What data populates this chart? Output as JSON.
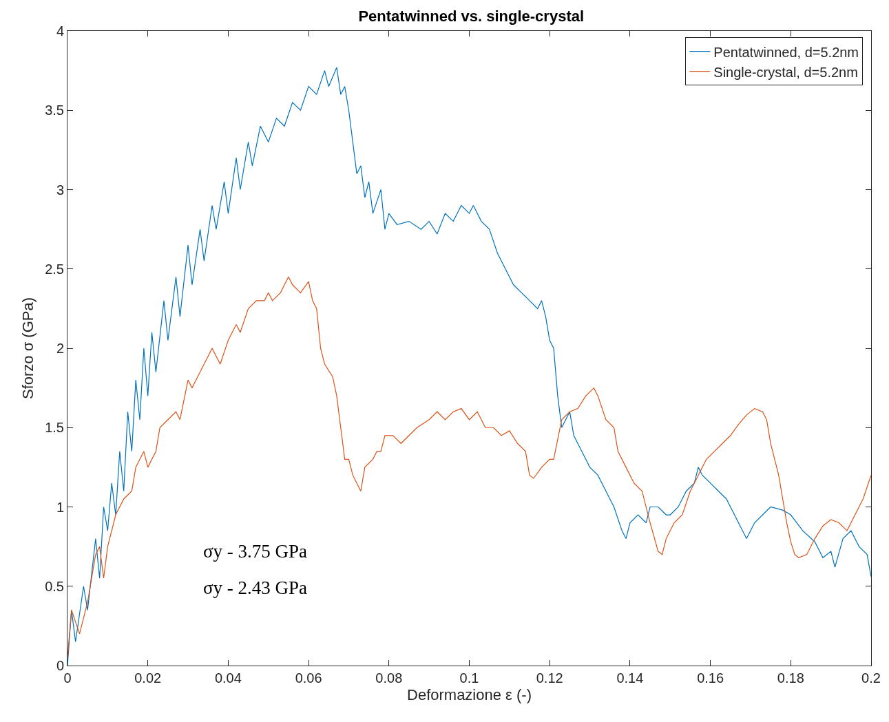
{
  "chart_data": {
    "type": "line",
    "title": "Pentatwinned vs. single-crystal",
    "xlabel": "Deformazione ε (-)",
    "ylabel": "Sforzo σ (GPa)",
    "xlim": [
      0,
      0.2
    ],
    "ylim": [
      0,
      4
    ],
    "xticks": [
      0,
      0.02,
      0.04,
      0.06,
      0.08,
      0.1,
      0.12,
      0.14,
      0.16,
      0.18,
      0.2
    ],
    "yticks": [
      0,
      0.5,
      1,
      1.5,
      2,
      2.5,
      3,
      3.5,
      4
    ],
    "legend": "top right",
    "marker": "none",
    "line_style": "solid",
    "annotations": [
      "σy - 3.75 GPa",
      "σy - 2.43 GPa"
    ],
    "series": [
      {
        "name": "Pentatwinned, d=5.2nm",
        "color": "#0072bd",
        "x": [
          0,
          0.001,
          0.002,
          0.004,
          0.005,
          0.007,
          0.008,
          0.009,
          0.01,
          0.011,
          0.012,
          0.013,
          0.014,
          0.015,
          0.016,
          0.017,
          0.018,
          0.019,
          0.02,
          0.021,
          0.022,
          0.024,
          0.025,
          0.027,
          0.028,
          0.03,
          0.031,
          0.033,
          0.034,
          0.036,
          0.037,
          0.039,
          0.04,
          0.042,
          0.043,
          0.045,
          0.046,
          0.048,
          0.05,
          0.052,
          0.054,
          0.056,
          0.058,
          0.06,
          0.062,
          0.064,
          0.065,
          0.067,
          0.068,
          0.069,
          0.07,
          0.071,
          0.072,
          0.073,
          0.074,
          0.075,
          0.076,
          0.078,
          0.079,
          0.08,
          0.082,
          0.085,
          0.088,
          0.09,
          0.092,
          0.094,
          0.096,
          0.098,
          0.1,
          0.101,
          0.103,
          0.105,
          0.107,
          0.109,
          0.111,
          0.113,
          0.115,
          0.117,
          0.118,
          0.119,
          0.12,
          0.121,
          0.122,
          0.123,
          0.124,
          0.125,
          0.126,
          0.128,
          0.13,
          0.132,
          0.134,
          0.136,
          0.138,
          0.139,
          0.14,
          0.142,
          0.144,
          0.145,
          0.147,
          0.149,
          0.15,
          0.152,
          0.154,
          0.156,
          0.157,
          0.158,
          0.16,
          0.162,
          0.164,
          0.166,
          0.168,
          0.169,
          0.171,
          0.173,
          0.175,
          0.178,
          0.18,
          0.183,
          0.186,
          0.188,
          0.19,
          0.191,
          0.193,
          0.195,
          0.197,
          0.199,
          0.2
        ],
        "values": [
          0,
          0.35,
          0.15,
          0.5,
          0.35,
          0.8,
          0.55,
          1.0,
          0.85,
          1.15,
          0.95,
          1.35,
          1.1,
          1.6,
          1.35,
          1.8,
          1.55,
          2.0,
          1.7,
          2.1,
          1.85,
          2.3,
          2.05,
          2.45,
          2.2,
          2.65,
          2.4,
          2.75,
          2.55,
          2.9,
          2.75,
          3.05,
          2.85,
          3.2,
          3.0,
          3.3,
          3.15,
          3.4,
          3.3,
          3.45,
          3.4,
          3.55,
          3.5,
          3.65,
          3.6,
          3.75,
          3.65,
          3.77,
          3.6,
          3.65,
          3.5,
          3.3,
          3.1,
          3.15,
          2.95,
          3.05,
          2.85,
          3.0,
          2.75,
          2.85,
          2.78,
          2.8,
          2.75,
          2.8,
          2.72,
          2.85,
          2.8,
          2.9,
          2.85,
          2.9,
          2.8,
          2.75,
          2.6,
          2.5,
          2.4,
          2.35,
          2.3,
          2.25,
          2.3,
          2.2,
          2.05,
          2.0,
          1.7,
          1.5,
          1.55,
          1.6,
          1.45,
          1.35,
          1.25,
          1.2,
          1.1,
          1.0,
          0.85,
          0.8,
          0.9,
          0.95,
          0.9,
          1.0,
          1.0,
          0.95,
          0.95,
          1.0,
          1.1,
          1.15,
          1.25,
          1.2,
          1.15,
          1.1,
          1.05,
          0.95,
          0.85,
          0.8,
          0.9,
          0.95,
          1.0,
          0.98,
          0.95,
          0.85,
          0.78,
          0.68,
          0.72,
          0.62,
          0.8,
          0.85,
          0.75,
          0.7,
          0.56
        ]
      },
      {
        "name": "Single-crystal, d=5.2nm",
        "color": "#d95319",
        "x": [
          0,
          0.001,
          0.003,
          0.005,
          0.006,
          0.007,
          0.008,
          0.009,
          0.01,
          0.012,
          0.014,
          0.016,
          0.017,
          0.019,
          0.02,
          0.022,
          0.023,
          0.025,
          0.027,
          0.028,
          0.03,
          0.031,
          0.033,
          0.035,
          0.036,
          0.038,
          0.04,
          0.042,
          0.043,
          0.045,
          0.047,
          0.049,
          0.05,
          0.051,
          0.053,
          0.055,
          0.056,
          0.058,
          0.06,
          0.061,
          0.062,
          0.063,
          0.064,
          0.066,
          0.067,
          0.068,
          0.069,
          0.07,
          0.071,
          0.072,
          0.073,
          0.074,
          0.076,
          0.077,
          0.078,
          0.079,
          0.081,
          0.083,
          0.085,
          0.087,
          0.09,
          0.092,
          0.094,
          0.096,
          0.098,
          0.1,
          0.102,
          0.104,
          0.106,
          0.108,
          0.11,
          0.112,
          0.114,
          0.115,
          0.116,
          0.118,
          0.12,
          0.121,
          0.123,
          0.125,
          0.127,
          0.129,
          0.131,
          0.132,
          0.134,
          0.136,
          0.137,
          0.139,
          0.141,
          0.143,
          0.145,
          0.147,
          0.148,
          0.149,
          0.151,
          0.153,
          0.155,
          0.157,
          0.159,
          0.161,
          0.163,
          0.165,
          0.167,
          0.169,
          0.171,
          0.173,
          0.174,
          0.175,
          0.177,
          0.179,
          0.18,
          0.181,
          0.182,
          0.184,
          0.186,
          0.188,
          0.19,
          0.192,
          0.194,
          0.196,
          0.198,
          0.2
        ],
        "values": [
          0.05,
          0.35,
          0.2,
          0.4,
          0.55,
          0.7,
          0.75,
          0.55,
          0.75,
          0.95,
          1.05,
          1.1,
          1.25,
          1.35,
          1.25,
          1.35,
          1.5,
          1.55,
          1.6,
          1.55,
          1.8,
          1.75,
          1.85,
          1.95,
          2.0,
          1.9,
          2.05,
          2.15,
          2.1,
          2.25,
          2.3,
          2.3,
          2.35,
          2.3,
          2.35,
          2.45,
          2.4,
          2.35,
          2.42,
          2.3,
          2.25,
          2.0,
          1.9,
          1.82,
          1.7,
          1.5,
          1.3,
          1.3,
          1.2,
          1.15,
          1.1,
          1.25,
          1.3,
          1.35,
          1.35,
          1.45,
          1.45,
          1.4,
          1.45,
          1.5,
          1.55,
          1.6,
          1.55,
          1.6,
          1.62,
          1.55,
          1.6,
          1.5,
          1.5,
          1.45,
          1.48,
          1.4,
          1.35,
          1.2,
          1.18,
          1.25,
          1.3,
          1.3,
          1.55,
          1.6,
          1.62,
          1.7,
          1.75,
          1.7,
          1.55,
          1.5,
          1.35,
          1.25,
          1.15,
          1.1,
          0.9,
          0.72,
          0.7,
          0.8,
          0.9,
          0.95,
          1.1,
          1.2,
          1.3,
          1.35,
          1.4,
          1.45,
          1.52,
          1.58,
          1.62,
          1.6,
          1.55,
          1.4,
          1.2,
          0.9,
          0.78,
          0.7,
          0.68,
          0.7,
          0.8,
          0.88,
          0.92,
          0.9,
          0.85,
          0.95,
          1.05,
          1.2
        ]
      }
    ]
  }
}
